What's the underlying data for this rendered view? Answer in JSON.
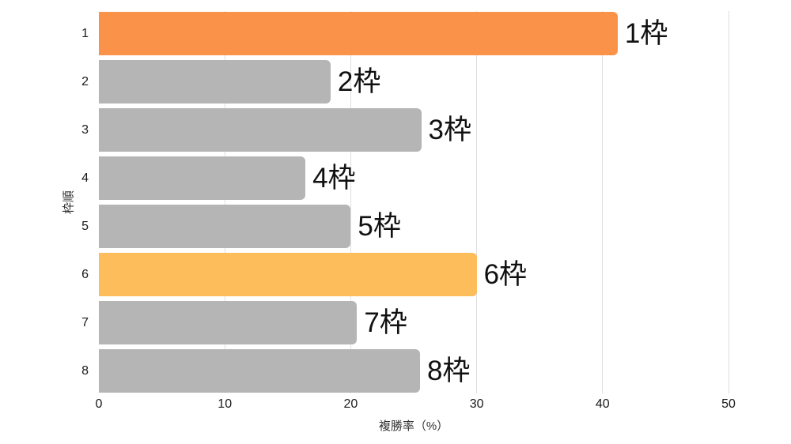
{
  "chart_data": {
    "type": "bar",
    "orientation": "horizontal",
    "title": "",
    "xlabel": "複勝率（%）",
    "ylabel": "枠順",
    "categories": [
      "1",
      "2",
      "3",
      "4",
      "5",
      "6",
      "7",
      "8"
    ],
    "values": [
      41.2,
      18.4,
      25.6,
      16.4,
      20.0,
      30.0,
      20.5,
      25.5
    ],
    "bar_labels": [
      "1枠",
      "2枠",
      "3枠",
      "4枠",
      "5枠",
      "6枠",
      "7枠",
      "8枠"
    ],
    "bar_colors": [
      "#FA9249",
      "#B5B5B5",
      "#B5B5B5",
      "#B5B5B5",
      "#B5B5B5",
      "#FCBD5A",
      "#B5B5B5",
      "#B5B5B5"
    ],
    "xticks": [
      0,
      10,
      20,
      30,
      40,
      50
    ],
    "xlim": [
      0,
      53
    ],
    "grid": true,
    "legend": false,
    "colors": {
      "highlight_primary": "#FA9249",
      "highlight_secondary": "#FCBD5A",
      "bar_default": "#B5B5B5",
      "gridline": "#DEDEDE",
      "bar_label_text": "#111111",
      "tick_text": "#1A1A1A",
      "axis_title_text": "#333333",
      "background": "#FFFFFF"
    }
  }
}
